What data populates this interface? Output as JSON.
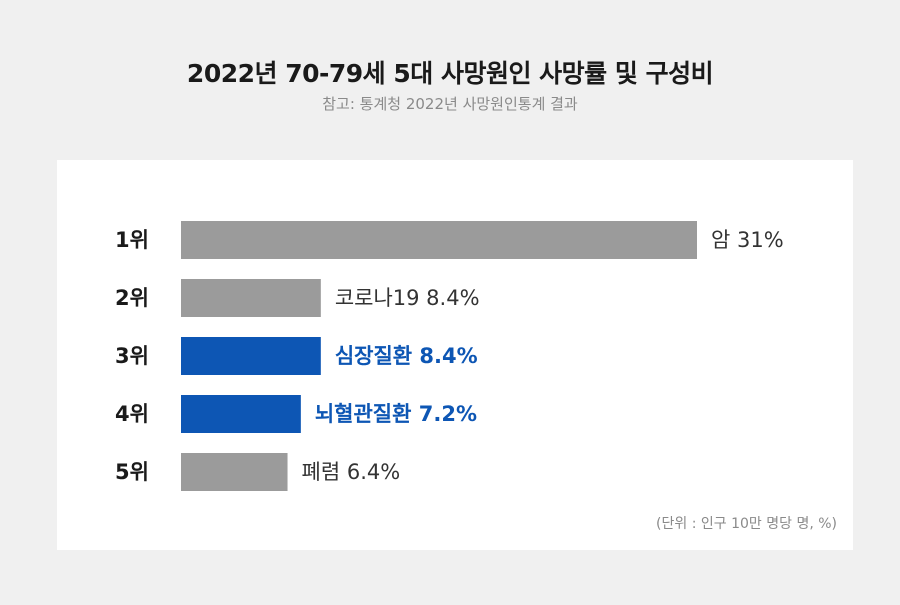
{
  "header": {
    "title": "2022년 70-79세 5대 사망원인 사망률 및 구성비",
    "subtitle": "참고: 통계청 2022년 사망원인통계 결과"
  },
  "unit_note": "(단위 : 인구 10만 명당 명, %)",
  "colors": {
    "background": "#f0f0f0",
    "panel": "#ffffff",
    "bar_default": "#9b9b9b",
    "bar_highlight": "#0d56b4",
    "label_default": "#333333",
    "label_highlight": "#0d56b4"
  },
  "chart_data": {
    "type": "bar",
    "orientation": "horizontal",
    "title": "2022년 70-79세 5대 사망원인 사망률 및 구성비",
    "subtitle": "참고: 통계청 2022년 사망원인통계 결과",
    "categories": [
      "1위",
      "2위",
      "3위",
      "4위",
      "5위"
    ],
    "causes": [
      "암",
      "코로나19",
      "심장질환",
      "뇌혈관질환",
      "폐렴"
    ],
    "values": [
      31,
      8.4,
      8.4,
      7.2,
      6.4
    ],
    "value_labels": [
      "암 31%",
      "코로나19 8.4%",
      "심장질환 8.4%",
      "뇌혈관질환 7.2%",
      "폐렴 6.4%"
    ],
    "highlighted": [
      false,
      false,
      true,
      true,
      false
    ],
    "unit": "%",
    "xlim": [
      0,
      31
    ],
    "grid": false,
    "legend": "none"
  }
}
